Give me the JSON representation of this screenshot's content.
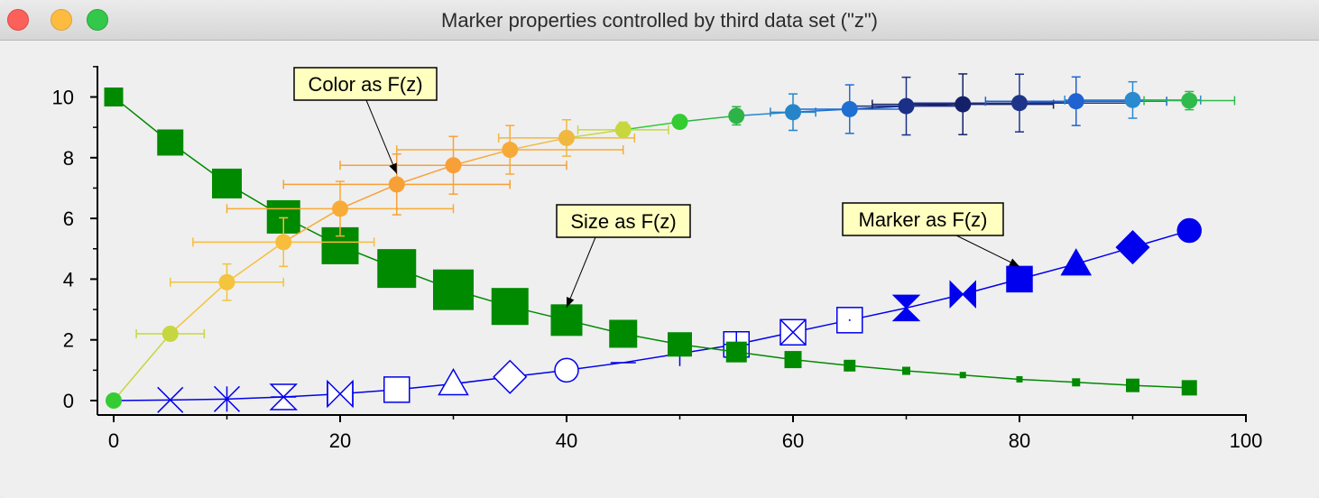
{
  "window": {
    "title": "Marker properties controlled by third data set (\"z\")",
    "controls": [
      "close-button",
      "minimize-button",
      "zoom-button"
    ]
  },
  "chart_data": {
    "type": "scatter",
    "xlim": [
      -2,
      100
    ],
    "ylim": [
      -0.5,
      11
    ],
    "x_ticks": [
      0,
      20,
      40,
      60,
      80,
      100
    ],
    "y_ticks": [
      0,
      2,
      4,
      6,
      8,
      10
    ],
    "grid": false,
    "series": [
      {
        "marker_encoding": "marker shape varies with z",
        "color": "#0000ee",
        "x": [
          0,
          5,
          10,
          15,
          20,
          25,
          30,
          35,
          40,
          45,
          50,
          55,
          60,
          65,
          70,
          75,
          80,
          85,
          90,
          95
        ],
        "y": [
          0,
          0.02,
          0.05,
          0.12,
          0.22,
          0.36,
          0.55,
          0.78,
          1.0,
          1.25,
          1.55,
          1.85,
          2.25,
          2.65,
          3.05,
          3.5,
          4.0,
          4.5,
          5.05,
          5.6
        ],
        "markers": [
          "none",
          "x",
          "asterisk",
          "hourglass-open",
          "bowtie-box-open",
          "square-open",
          "triangle-open",
          "diamond-open",
          "circle-open",
          "hline",
          "vline",
          "plus-box-open",
          "x-box-open",
          "dot-box-open",
          "hourglass",
          "bowtie",
          "square",
          "triangle",
          "diamond",
          "circle"
        ]
      },
      {
        "marker_encoding": "marker size varies with z",
        "color": "#008a00",
        "x": [
          0,
          5,
          10,
          15,
          20,
          25,
          30,
          35,
          40,
          45,
          50,
          55,
          60,
          65,
          70,
          75,
          80,
          85,
          90,
          95
        ],
        "y": [
          10,
          8.5,
          7.15,
          6.05,
          5.1,
          4.35,
          3.65,
          3.1,
          2.65,
          2.2,
          1.85,
          1.6,
          1.35,
          1.15,
          0.98,
          0.84,
          0.7,
          0.6,
          0.5,
          0.42
        ],
        "marker": "square",
        "marker_sizes": [
          10,
          14,
          16,
          18,
          20,
          21,
          22,
          20,
          17,
          15,
          13,
          11,
          9,
          6,
          4,
          3,
          3,
          4,
          7,
          8
        ]
      },
      {
        "marker_encoding": "marker color varies with z",
        "x": [
          0,
          5,
          10,
          15,
          20,
          25,
          30,
          35,
          40,
          45,
          50,
          55,
          60,
          65,
          70,
          75,
          80,
          85,
          90,
          95
        ],
        "y": [
          0,
          2.2,
          3.9,
          5.22,
          6.32,
          7.12,
          7.75,
          8.26,
          8.65,
          8.92,
          9.18,
          9.38,
          9.5,
          9.6,
          9.7,
          9.76,
          9.8,
          9.86,
          9.9,
          9.88
        ],
        "x_error": [
          0,
          3,
          5,
          8,
          10,
          10,
          10,
          10,
          6,
          4,
          0,
          0,
          2,
          5,
          5,
          8,
          10,
          8,
          6,
          4
        ],
        "y_error": [
          0,
          0.2,
          0.6,
          0.8,
          0.9,
          1.0,
          0.95,
          0.8,
          0.6,
          0.25,
          0,
          0.3,
          0.6,
          0.8,
          0.95,
          1.0,
          0.95,
          0.8,
          0.6,
          0.3
        ],
        "marker": "circle",
        "point_colors": [
          "#33cc33",
          "#c6d640",
          "#f3c43c",
          "#f8bd3a",
          "#f8ab36",
          "#f7a036",
          "#f8a038",
          "#f8aa38",
          "#f0b840",
          "#c8d73e",
          "#33cc33",
          "#2db348",
          "#2685c9",
          "#1f6fd1",
          "#1b2f86",
          "#14216a",
          "#1d3488",
          "#1f62d2",
          "#2a8ad0",
          "#2ebb4c"
        ]
      }
    ],
    "annotations": [
      {
        "text": "Color as F(z)",
        "points_to": [
          25,
          7.12
        ]
      },
      {
        "text": "Size as F(z)",
        "points_to": [
          40,
          2.65
        ]
      },
      {
        "text": "Marker as F(z)",
        "points_to": [
          80,
          4.0
        ]
      }
    ]
  }
}
